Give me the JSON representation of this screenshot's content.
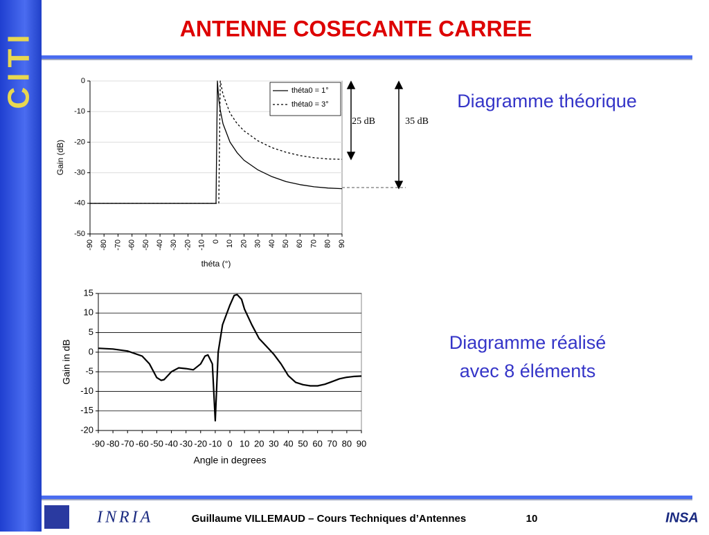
{
  "slide": {
    "title": "ANTENNE COSECANTE CARREE",
    "logo_text": "CITI",
    "caption_1": "Diagramme théorique",
    "caption_2_lines": [
      "Diagramme réalisé",
      "avec 8 éléments"
    ],
    "footer": "Guillaume VILLEMAUD – Cours Techniques d’Antennes",
    "page_number": "10",
    "footer_logo_left": "INRIA",
    "footer_logo_right": "INSA"
  },
  "chart_data": [
    {
      "type": "line",
      "x_label": "théta  (°)",
      "y_label": "Gain (dB)",
      "x": [
        -90,
        -80,
        -70,
        -60,
        -50,
        -40,
        -30,
        -20,
        -10,
        0,
        1,
        2,
        3,
        5,
        10,
        15,
        20,
        30,
        40,
        50,
        60,
        70,
        80,
        90
      ],
      "series": [
        {
          "name": "théta0 = 1°",
          "color": "#000000",
          "style": "solid",
          "values": [
            -40,
            -40,
            -40,
            -40,
            -40,
            -40,
            -40,
            -40,
            -40,
            -40,
            0,
            -6.0,
            -9.5,
            -14.0,
            -20.0,
            -23.4,
            -25.9,
            -29.1,
            -31.3,
            -32.9,
            -33.9,
            -34.6,
            -35.0,
            -35.2
          ]
        },
        {
          "name": "théta0 = 3°",
          "color": "#000000",
          "style": "dashed",
          "values": [
            -40,
            -40,
            -40,
            -40,
            -40,
            -40,
            -40,
            -40,
            -40,
            -40,
            -40,
            -40,
            0,
            -4.4,
            -10.5,
            -13.9,
            -16.3,
            -19.6,
            -21.8,
            -23.3,
            -24.4,
            -25.1,
            -25.5,
            -25.6
          ]
        }
      ],
      "xlim": [
        -90,
        90
      ],
      "xticks": [
        -90,
        -80,
        -70,
        -60,
        -50,
        -40,
        -30,
        -20,
        -10,
        0,
        10,
        20,
        30,
        40,
        50,
        60,
        70,
        80,
        90
      ],
      "ylim": [
        -50,
        0
      ],
      "yticks": [
        0,
        -10,
        -20,
        -30,
        -40,
        -50
      ],
      "grid": true,
      "legend": "upper right",
      "annotations": [
        "25 dB",
        "35 dB"
      ]
    },
    {
      "type": "line",
      "x_label": "Angle in degrees",
      "y_label": "Gain in dB",
      "x": [
        -90,
        -80,
        -70,
        -60,
        -55,
        -50,
        -47,
        -45,
        -40,
        -35,
        -30,
        -25,
        -20,
        -17,
        -15,
        -12,
        -10,
        -8,
        -5,
        0,
        3,
        5,
        8,
        10,
        15,
        20,
        25,
        30,
        35,
        40,
        45,
        50,
        55,
        60,
        65,
        70,
        75,
        80,
        85,
        90
      ],
      "series": [
        {
          "color": "#000000",
          "style": "solid",
          "values": [
            1,
            0.8,
            0.3,
            -1,
            -3,
            -6.5,
            -7.2,
            -7,
            -5,
            -4,
            -4.2,
            -4.5,
            -3,
            -1,
            -0.7,
            -3,
            -17.5,
            0,
            7,
            12,
            14.5,
            14.7,
            13.5,
            11,
            7,
            3.5,
            1.5,
            -0.5,
            -3,
            -6,
            -7.7,
            -8.3,
            -8.6,
            -8.6,
            -8.2,
            -7.5,
            -6.8,
            -6.4,
            -6.2,
            -6.1
          ]
        }
      ],
      "xlim": [
        -90,
        90
      ],
      "xticks": [
        -90,
        -80,
        -70,
        -60,
        -50,
        -40,
        -30,
        -20,
        -10,
        0,
        10,
        20,
        30,
        40,
        50,
        60,
        70,
        80,
        90
      ],
      "ylim": [
        -20,
        15
      ],
      "yticks": [
        15,
        10,
        5,
        0,
        -5,
        -10,
        -15,
        -20
      ],
      "grid": true
    }
  ]
}
